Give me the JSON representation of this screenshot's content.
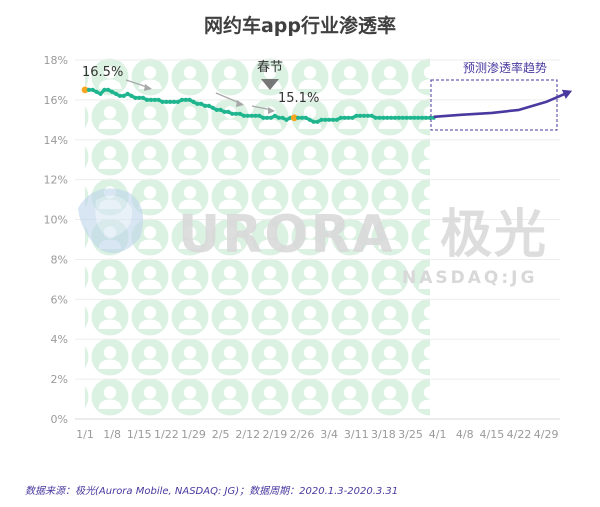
{
  "chart_data": {
    "type": "line",
    "title": "网约车app行业渗透率",
    "ylim": [
      0,
      18
    ],
    "yticks": [
      "18%",
      "16%",
      "14%",
      "12%",
      "10%",
      "8%",
      "6%",
      "4%",
      "2%",
      "0%"
    ],
    "ytick_values": [
      18,
      16,
      14,
      12,
      10,
      8,
      6,
      4,
      2,
      0
    ],
    "xticks": [
      "1/1",
      "1/8",
      "1/15",
      "1/22",
      "1/29",
      "2/5",
      "2/12",
      "2/19",
      "2/26",
      "3/4",
      "3/11",
      "3/18",
      "3/25",
      "4/1",
      "4/8",
      "4/15",
      "4/22",
      "4/29"
    ],
    "series": [
      {
        "name": "渗透率",
        "color": "#1fb58f",
        "x_days": [
          0,
          1,
          2,
          3,
          4,
          5,
          6,
          7,
          8,
          9,
          10,
          11,
          12,
          13,
          14,
          15,
          16,
          17,
          18,
          19,
          20,
          21,
          22,
          23,
          24,
          25,
          26,
          27,
          28,
          29,
          30,
          31,
          32,
          33,
          34,
          35,
          36,
          37,
          38,
          39,
          40,
          41,
          42,
          43,
          44,
          45,
          46,
          47,
          48,
          49,
          50,
          51,
          52,
          53,
          54,
          55,
          56,
          57,
          58,
          59,
          60,
          61,
          62,
          63,
          64,
          65,
          66,
          67,
          68,
          69,
          70,
          71,
          72,
          73,
          74,
          75,
          76,
          77,
          78,
          79,
          80,
          81,
          82,
          83,
          84,
          85,
          86,
          87,
          88,
          89,
          90
        ],
        "values": [
          16.5,
          16.5,
          16.5,
          16.4,
          16.3,
          16.5,
          16.5,
          16.4,
          16.3,
          16.2,
          16.2,
          16.3,
          16.2,
          16.1,
          16.1,
          16.1,
          16.0,
          16.0,
          16.0,
          16.0,
          15.9,
          15.9,
          15.9,
          15.9,
          15.9,
          16.0,
          16.0,
          16.0,
          15.9,
          15.8,
          15.8,
          15.7,
          15.7,
          15.6,
          15.5,
          15.5,
          15.4,
          15.4,
          15.3,
          15.3,
          15.3,
          15.2,
          15.2,
          15.2,
          15.2,
          15.2,
          15.1,
          15.1,
          15.1,
          15.2,
          15.1,
          15.1,
          15.0,
          15.1,
          15.1,
          15.1,
          15.1,
          15.1,
          15.0,
          14.9,
          14.9,
          15.0,
          15.0,
          15.0,
          15.0,
          15.0,
          15.1,
          15.1,
          15.1,
          15.1,
          15.2,
          15.2,
          15.2,
          15.2,
          15.2,
          15.1,
          15.1,
          15.1,
          15.1,
          15.1,
          15.1,
          15.1,
          15.1,
          15.1,
          15.1,
          15.1,
          15.1,
          15.1,
          15.1,
          15.1,
          15.1
        ],
        "highlight_days": [
          0,
          54
        ]
      },
      {
        "name": "预测渗透率趋势",
        "color": "#4a3aa0",
        "x_days": [
          90,
          97,
          105,
          112,
          119,
          125
        ],
        "values": [
          15.15,
          15.25,
          15.35,
          15.5,
          15.9,
          16.4
        ]
      }
    ],
    "annotations": {
      "start_label": "16.5%",
      "low_label": "15.1%",
      "event_label": "春节",
      "forecast_label": "预测渗透率趋势"
    }
  },
  "watermark": {
    "brand": "URORA",
    "brand_cn": "极光",
    "ticker": "NASDAQ:JG"
  },
  "source_text": "数据来源：极光(Aurora Mobile, NASDAQ: JG)；数据周期：2020.1.3-2020.3.31"
}
